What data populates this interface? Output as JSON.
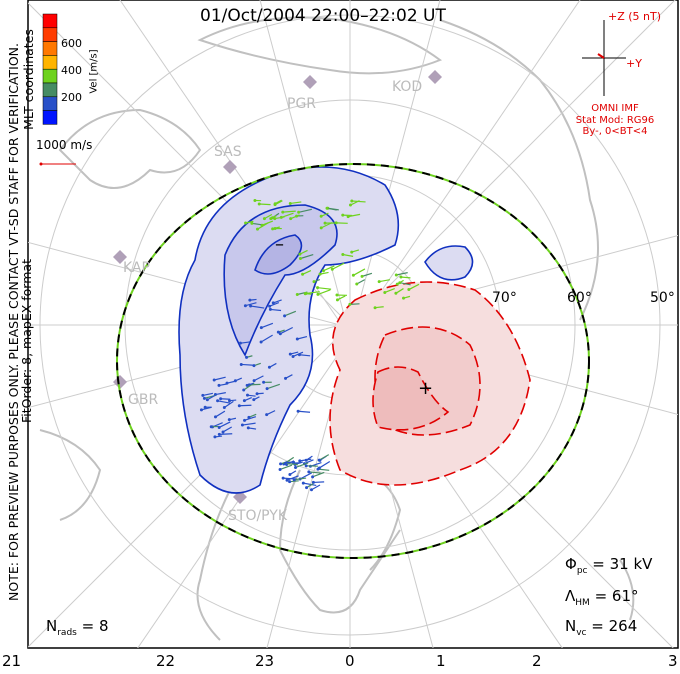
{
  "title": "01/Oct/2004 22:00–22:02 UT",
  "side_note": {
    "line1": "NOTE: FOR PREVIEW PURPOSES ONLY. PLEASE CONTACT VT-SD STAFF FOR VERIFICATION.",
    "line2": "FitOrder: 8, mapEX format",
    "coords": "MLT coordinates"
  },
  "colorbar": {
    "label": "Vel [m/s]",
    "ticks": [
      "600",
      "400",
      "200"
    ],
    "colors": [
      "#ff0000",
      "#ff3c00",
      "#ff7800",
      "#ffb400",
      "#6ed21e",
      "#468c64",
      "#2850c8",
      "#0014ff"
    ]
  },
  "reference_vector": {
    "label": "1000 m/s"
  },
  "imf": {
    "z_label": "+Z (5 nT)",
    "y_label": "+Y",
    "source": "OMNI IMF",
    "model": "Stat Mod: RG96",
    "condition": "By-, 0<BT<4"
  },
  "radars": [
    "PGR",
    "KOD",
    "SAS",
    "KAP",
    "GBR",
    "STO/PYK"
  ],
  "latitude_labels": [
    "70°",
    "60°",
    "50°"
  ],
  "mlt_ticks": [
    "21",
    "22",
    "23",
    "0",
    "1",
    "2",
    "3"
  ],
  "stats": {
    "nrads_label": "N",
    "nrads_sub": "rads",
    "nrads_value": "= 8",
    "phi_label": "Φ",
    "phi_sub": "pc",
    "phi_value": "= 31 kV",
    "lambda_label": "Λ",
    "lambda_sub": "HM",
    "lambda_value": "= 61°",
    "nvc_label": "N",
    "nvc_sub": "vc",
    "nvc_value": "= 264"
  },
  "contour_labels": {
    "min": "–",
    "max": "+"
  },
  "colors": {
    "negative": "#1030c0",
    "positive": "#e00000",
    "grid": "#cccccc",
    "land": "#bbbbbb"
  }
}
